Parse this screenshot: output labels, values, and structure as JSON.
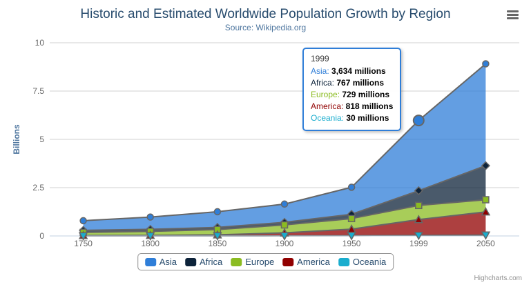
{
  "chart_data": {
    "type": "area",
    "stacking": "normal",
    "title": "Historic and Estimated Worldwide Population Growth by Region",
    "subtitle": "Source: Wikipedia.org",
    "categories": [
      "1750",
      "1800",
      "1850",
      "1900",
      "1950",
      "1999",
      "2050"
    ],
    "series": [
      {
        "name": "Asia",
        "color": "#2f7ed8",
        "marker": "circle",
        "values": [
          502,
          635,
          809,
          947,
          1402,
          3634,
          5268
        ]
      },
      {
        "name": "Africa",
        "color": "#0d233a",
        "marker": "diamond",
        "values": [
          106,
          107,
          111,
          133,
          221,
          767,
          1766
        ]
      },
      {
        "name": "Europe",
        "color": "#8bbc21",
        "marker": "square",
        "values": [
          163,
          203,
          276,
          408,
          547,
          729,
          628
        ]
      },
      {
        "name": "America",
        "color": "#910000",
        "marker": "triangle",
        "values": [
          18,
          31,
          54,
          156,
          339,
          818,
          1201
        ]
      },
      {
        "name": "Oceania",
        "color": "#1aadce",
        "marker": "triangle-down",
        "values": [
          2,
          2,
          2,
          6,
          13,
          30,
          46
        ]
      }
    ],
    "unit": "millions",
    "ylabel": "Billions",
    "yticks": [
      "0",
      "2.5",
      "5",
      "7.5",
      "10"
    ],
    "ytick_values_millions": [
      0,
      2500,
      5000,
      7500,
      10000
    ],
    "ylim_millions": [
      0,
      10000
    ],
    "grid": true,
    "line_color": "#666666",
    "fill_opacity": 0.75,
    "legend_position": "bottom",
    "hover": {
      "series": "Asia",
      "category": "1999",
      "category_index": 5
    }
  },
  "tooltip": {
    "header": "1999",
    "border_color": "#2f7ed8",
    "rows": [
      {
        "label": "Asia",
        "value": "3,634 millions",
        "color": "#2f7ed8"
      },
      {
        "label": "Africa",
        "value": "767 millions",
        "color": "#0d233a"
      },
      {
        "label": "Europe",
        "value": "729 millions",
        "color": "#8bbc21"
      },
      {
        "label": "America",
        "value": "818 millions",
        "color": "#910000"
      },
      {
        "label": "Oceania",
        "value": "30 millions",
        "color": "#1aadce"
      }
    ]
  },
  "icons": {
    "export_menu": "hamburger-icon"
  },
  "credits": {
    "label": "Highcharts.com"
  },
  "colors": {
    "title": "#274b6d",
    "subtitle": "#4d759e",
    "axis_label": "#666666",
    "axis_title": "#4d759e",
    "gridline": "#d0d0d0",
    "axis_line": "#c0d0e0",
    "legend_border": "#909090",
    "credits_text": "#909090"
  }
}
